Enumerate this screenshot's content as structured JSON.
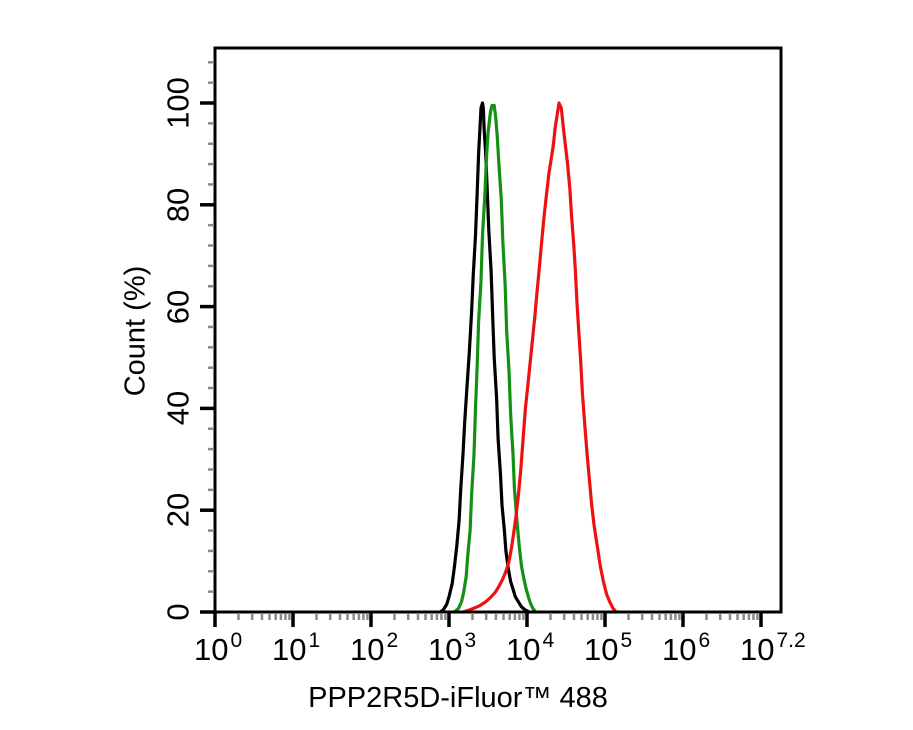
{
  "chart_data": {
    "type": "line",
    "chart_kind": "flow-cytometry-histogram-overlay",
    "title": "",
    "xlabel": "PPP2R5D-iFluor™ 488",
    "ylabel": "Count (%)",
    "x_scale": "log10",
    "x_ticks": {
      "base": "10",
      "exponents": [
        "0",
        "1",
        "2",
        "3",
        "4",
        "5",
        "6",
        "7.2"
      ]
    },
    "y_ticks": [
      "0",
      "20",
      "40",
      "60",
      "80",
      "100"
    ],
    "y_tick_values": [
      0,
      20,
      40,
      60,
      80,
      100
    ],
    "ylim": [
      0,
      112
    ],
    "grid": false,
    "legend": "none",
    "colors": {
      "axis": "#000000",
      "minor_tick": "#8a8a8a",
      "background": "#ffffff"
    },
    "series": [
      {
        "name": "black",
        "color": "#000000",
        "points": [
          [
            2.89,
            0
          ],
          [
            2.93,
            0.5
          ],
          [
            2.97,
            1.5
          ],
          [
            3.0,
            3
          ],
          [
            3.04,
            5.5
          ],
          [
            3.07,
            9
          ],
          [
            3.1,
            13
          ],
          [
            3.13,
            18
          ],
          [
            3.15,
            24
          ],
          [
            3.18,
            31
          ],
          [
            3.2,
            37
          ],
          [
            3.23,
            44
          ],
          [
            3.26,
            51
          ],
          [
            3.29,
            59
          ],
          [
            3.31,
            66
          ],
          [
            3.34,
            74
          ],
          [
            3.36,
            82
          ],
          [
            3.38,
            90
          ],
          [
            3.4,
            96
          ],
          [
            3.41,
            99
          ],
          [
            3.43,
            100
          ],
          [
            3.44,
            99
          ],
          [
            3.45,
            95
          ],
          [
            3.47,
            90
          ],
          [
            3.49,
            83
          ],
          [
            3.51,
            75
          ],
          [
            3.54,
            67
          ],
          [
            3.56,
            58
          ],
          [
            3.58,
            50
          ],
          [
            3.61,
            42
          ],
          [
            3.63,
            34
          ],
          [
            3.66,
            27
          ],
          [
            3.68,
            21
          ],
          [
            3.71,
            16
          ],
          [
            3.73,
            12
          ],
          [
            3.76,
            8.5
          ],
          [
            3.79,
            6
          ],
          [
            3.82,
            4.5
          ],
          [
            3.85,
            3
          ],
          [
            3.89,
            2
          ],
          [
            3.93,
            1
          ],
          [
            3.98,
            0.4
          ],
          [
            4.03,
            0
          ]
        ]
      },
      {
        "name": "green",
        "color": "#149114",
        "points": [
          [
            3.07,
            0
          ],
          [
            3.12,
            0.7
          ],
          [
            3.16,
            2
          ],
          [
            3.19,
            4
          ],
          [
            3.22,
            7
          ],
          [
            3.24,
            11
          ],
          [
            3.27,
            16
          ],
          [
            3.29,
            23
          ],
          [
            3.32,
            31
          ],
          [
            3.34,
            40
          ],
          [
            3.36,
            48
          ],
          [
            3.38,
            57
          ],
          [
            3.41,
            65
          ],
          [
            3.43,
            74
          ],
          [
            3.46,
            82
          ],
          [
            3.48,
            89
          ],
          [
            3.5,
            94
          ],
          [
            3.53,
            98
          ],
          [
            3.55,
            99.5
          ],
          [
            3.58,
            99.5
          ],
          [
            3.6,
            97
          ],
          [
            3.62,
            93
          ],
          [
            3.64,
            88
          ],
          [
            3.67,
            81
          ],
          [
            3.69,
            73
          ],
          [
            3.72,
            64
          ],
          [
            3.74,
            55
          ],
          [
            3.77,
            47
          ],
          [
            3.79,
            39
          ],
          [
            3.82,
            31
          ],
          [
            3.84,
            24
          ],
          [
            3.87,
            18
          ],
          [
            3.9,
            13
          ],
          [
            3.93,
            9
          ],
          [
            3.96,
            6.5
          ],
          [
            3.99,
            4.5
          ],
          [
            4.02,
            2.8
          ],
          [
            4.05,
            1.5
          ],
          [
            4.08,
            0.6
          ],
          [
            4.11,
            0
          ]
        ]
      },
      {
        "name": "red",
        "color": "#ee1111",
        "points": [
          [
            3.18,
            0
          ],
          [
            3.26,
            0.4
          ],
          [
            3.33,
            0.8
          ],
          [
            3.4,
            1.3
          ],
          [
            3.47,
            2
          ],
          [
            3.53,
            2.8
          ],
          [
            3.59,
            3.8
          ],
          [
            3.64,
            5
          ],
          [
            3.69,
            6.5
          ],
          [
            3.73,
            8
          ],
          [
            3.77,
            10
          ],
          [
            3.8,
            12.5
          ],
          [
            3.83,
            15.5
          ],
          [
            3.86,
            19
          ],
          [
            3.89,
            23
          ],
          [
            3.92,
            28
          ],
          [
            3.95,
            34
          ],
          [
            3.98,
            40
          ],
          [
            4.02,
            46
          ],
          [
            4.06,
            52
          ],
          [
            4.1,
            58
          ],
          [
            4.13,
            63
          ],
          [
            4.16,
            68
          ],
          [
            4.19,
            73
          ],
          [
            4.22,
            78
          ],
          [
            4.25,
            82
          ],
          [
            4.28,
            86
          ],
          [
            4.31,
            89
          ],
          [
            4.34,
            92
          ],
          [
            4.36,
            95
          ],
          [
            4.39,
            98
          ],
          [
            4.41,
            100
          ],
          [
            4.44,
            99
          ],
          [
            4.46,
            96
          ],
          [
            4.49,
            92
          ],
          [
            4.52,
            88
          ],
          [
            4.55,
            83
          ],
          [
            4.57,
            78
          ],
          [
            4.6,
            72
          ],
          [
            4.62,
            67
          ],
          [
            4.64,
            61
          ],
          [
            4.66,
            56
          ],
          [
            4.69,
            49
          ],
          [
            4.71,
            43
          ],
          [
            4.74,
            37
          ],
          [
            4.77,
            31
          ],
          [
            4.8,
            26
          ],
          [
            4.83,
            21
          ],
          [
            4.86,
            17
          ],
          [
            4.9,
            13
          ],
          [
            4.94,
            9
          ],
          [
            4.98,
            6
          ],
          [
            5.02,
            3.5
          ],
          [
            5.06,
            2
          ],
          [
            5.1,
            0.8
          ],
          [
            5.14,
            0
          ]
        ]
      }
    ]
  }
}
